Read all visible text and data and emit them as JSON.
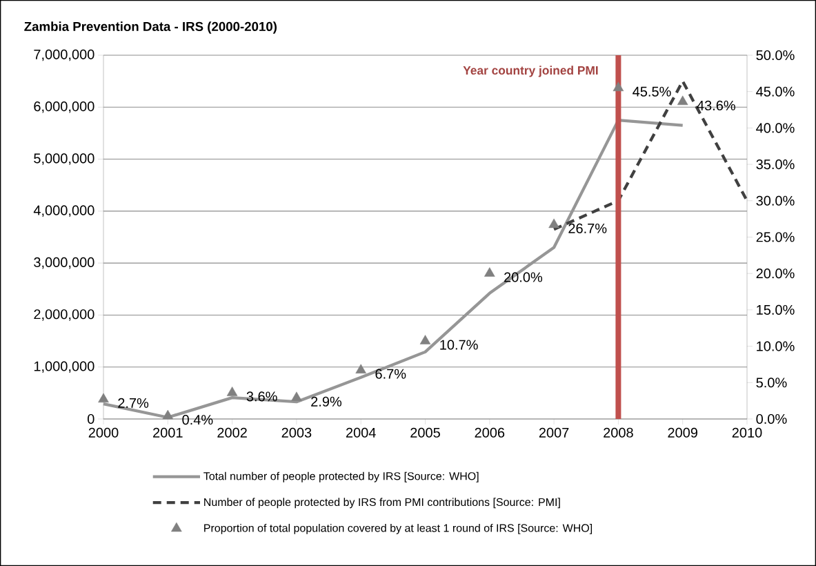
{
  "chart_data": {
    "type": "line",
    "title": "Zambia Prevention Data - IRS (2000-2010)",
    "x": [
      2000,
      2001,
      2002,
      2003,
      2004,
      2005,
      2006,
      2007,
      2008,
      2009,
      2010
    ],
    "xlim": [
      2000,
      2010
    ],
    "xticks": [
      2000,
      2001,
      2002,
      2003,
      2004,
      2005,
      2006,
      2007,
      2008,
      2009,
      2010
    ],
    "ylim": [
      0,
      7000000
    ],
    "yticks": [
      0,
      {
        "value": 1000000,
        "label": "1,000,000"
      },
      {
        "value": 2000000,
        "label": "2,000,000"
      },
      {
        "value": 3000000,
        "label": "3,000,000"
      },
      {
        "value": 4000000,
        "label": "4,000,000"
      },
      {
        "value": 5000000,
        "label": "5,000,000"
      },
      {
        "value": 6000000,
        "label": "6,000,000"
      },
      {
        "value": 7000000,
        "label": "7,000,000"
      }
    ],
    "y2lim": [
      0,
      50
    ],
    "y2ticks": [
      {
        "value": 0,
        "label": "0.0%"
      },
      {
        "value": 5,
        "label": "5.0%"
      },
      {
        "value": 10,
        "label": "10.0%"
      },
      {
        "value": 15,
        "label": "15.0%"
      },
      {
        "value": 20,
        "label": "20.0%"
      },
      {
        "value": 25,
        "label": "25.0%"
      },
      {
        "value": 30,
        "label": "30.0%"
      },
      {
        "value": 35,
        "label": "35.0%"
      },
      {
        "value": 40,
        "label": "40.0%"
      },
      {
        "value": 45,
        "label": "45.0%"
      },
      {
        "value": 50,
        "label": "50.0%"
      }
    ],
    "grid": "y",
    "legend": "bottom",
    "series": [
      {
        "name": "Total number of people protected by IRS [Source: WHO]",
        "color": "#969696",
        "line_style": "solid",
        "marker": "none",
        "values": [
          290000,
          30000,
          410000,
          330000,
          800000,
          1290000,
          2420000,
          3300000,
          5750000,
          5650000,
          null
        ]
      },
      {
        "name": "Number of people protected by IRS from PMI contributions [Source: PMI]",
        "color": "#404040",
        "line_style": "dashed",
        "marker": "none",
        "values": [
          null,
          null,
          null,
          null,
          null,
          null,
          null,
          3650000,
          4200000,
          6500000,
          4200000
        ]
      },
      {
        "name": "Proportion of total population covered by at least 1 round of IRS [Source: WHO]",
        "type": "scatter",
        "axis": "y2",
        "color": "#808080",
        "marker": "triangle",
        "values": [
          2.7,
          0.4,
          3.6,
          2.9,
          6.7,
          10.7,
          20.0,
          26.7,
          45.5,
          43.6,
          null
        ],
        "value_labels": [
          "2.7%",
          "0.4%",
          "3.6%",
          "2.9%",
          "6.7%",
          "10.7%",
          "20.0%",
          "26.7%",
          "45.5%",
          "43.6%",
          null
        ]
      }
    ],
    "ref_lines": [
      {
        "axis": "x",
        "value": 2008,
        "label": "Year country joined PMI",
        "color": "#c0504d"
      }
    ]
  }
}
